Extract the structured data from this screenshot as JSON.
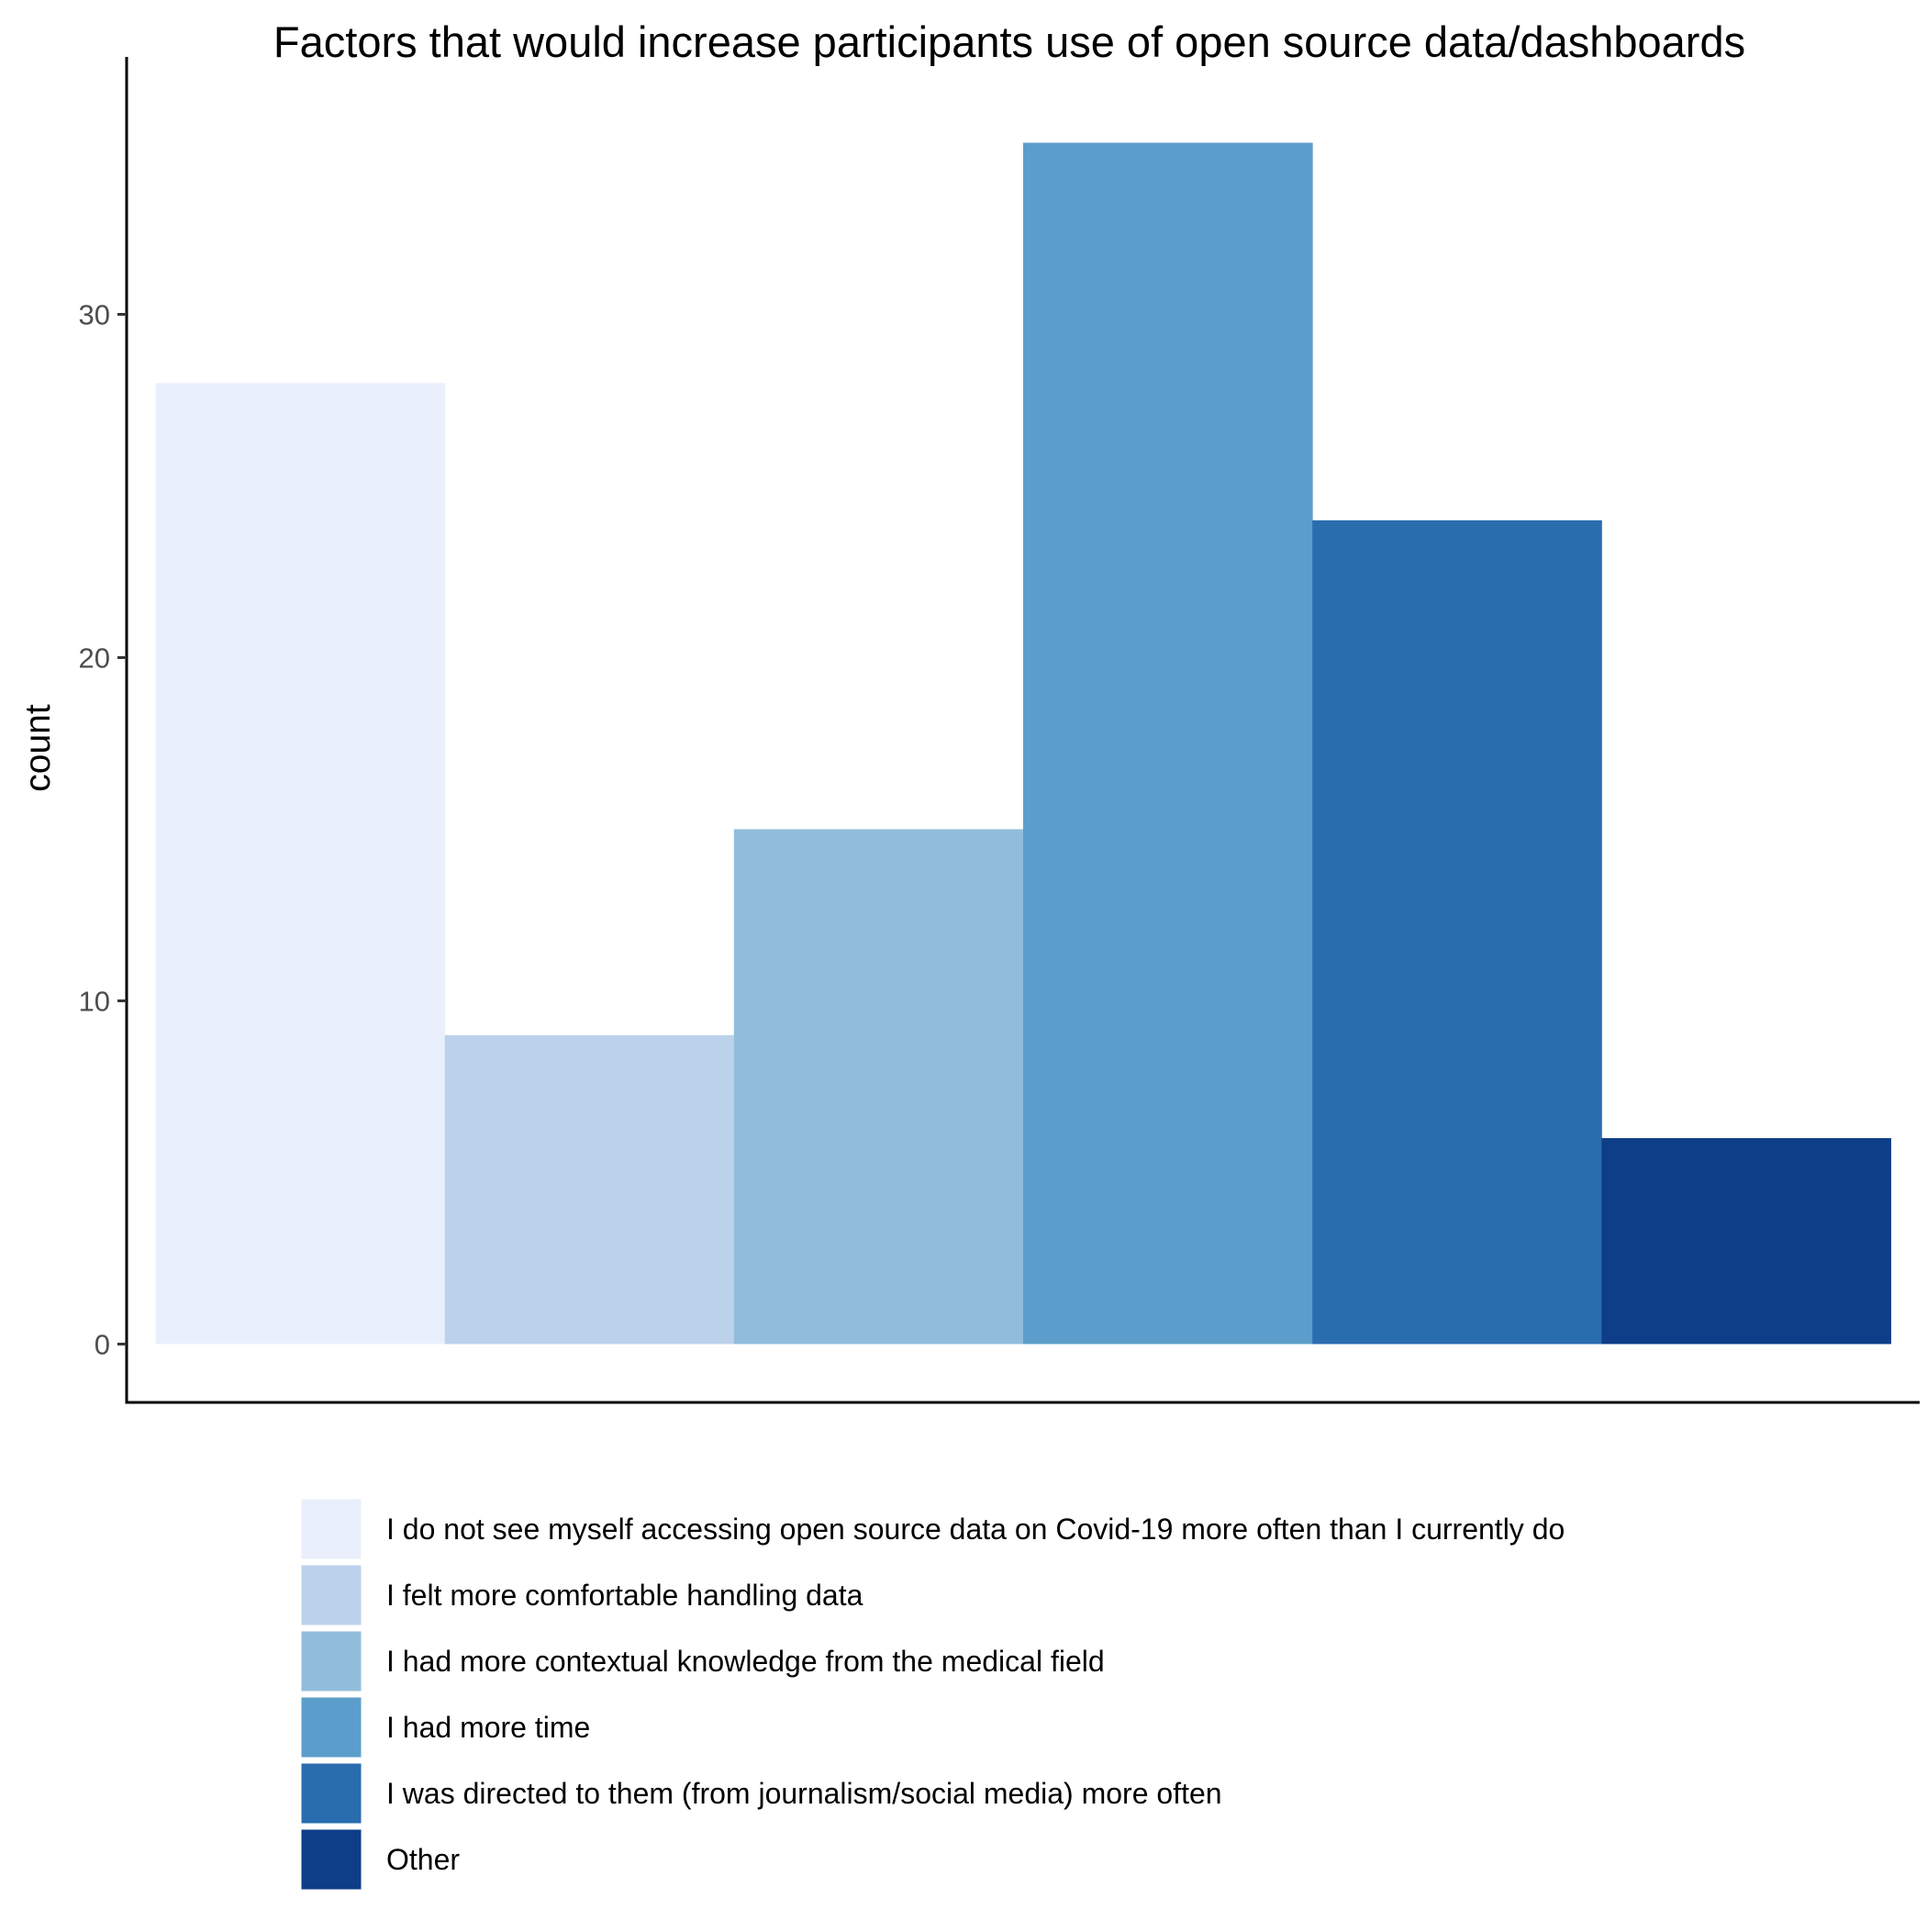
{
  "chart_data": {
    "type": "bar",
    "title": "Factors that would increase participants use of open source data/dashboards",
    "xlabel": "",
    "ylabel": "count",
    "ylim": [
      -1.7,
      37.5
    ],
    "yticks": [
      0,
      10,
      20,
      30
    ],
    "grid": false,
    "legend_position": "bottom",
    "categories": [
      "I do not see myself accessing open source data on Covid-19 more often than I currently do",
      "I felt more comfortable handling data",
      "I had more contextual knowledge from the medical field",
      "I had more time",
      "I was directed to them (from journalism/social media) more often",
      "Other"
    ],
    "values": [
      28,
      9,
      15,
      35,
      24,
      6
    ],
    "colors": [
      "#eaf0fb",
      "#bcd2eb",
      "#91bddb",
      "#5c9ecb",
      "#2a6daf",
      "#0e3e88"
    ]
  }
}
